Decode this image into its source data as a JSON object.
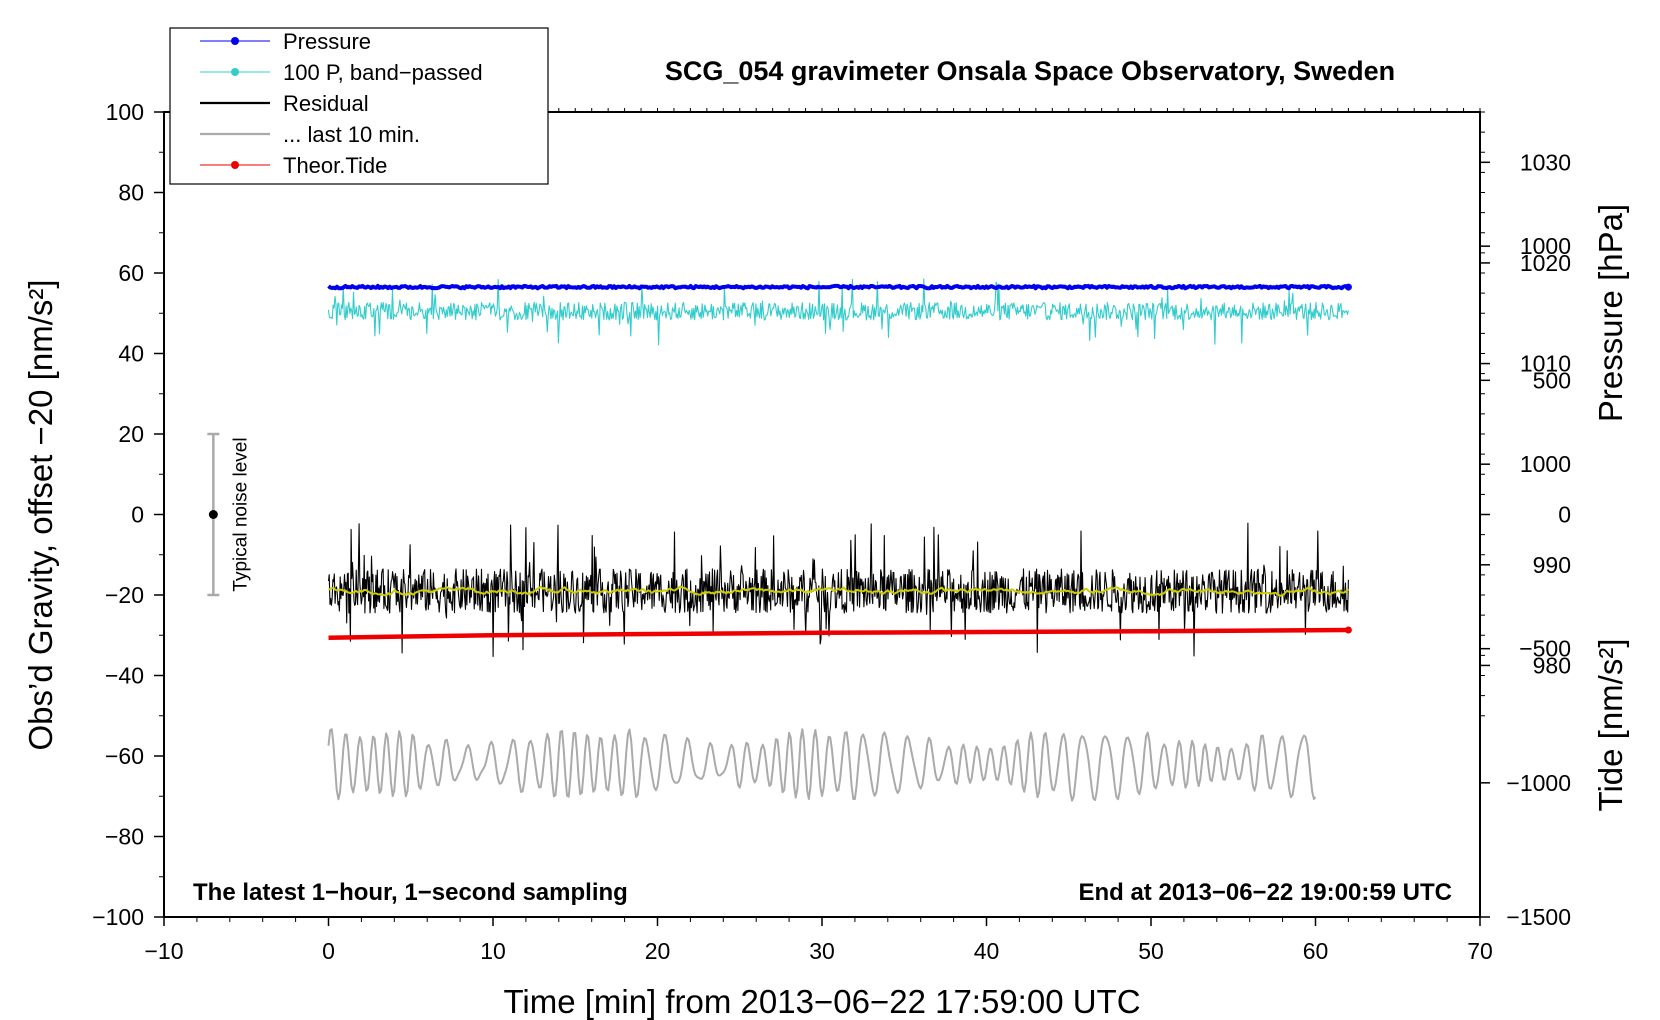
{
  "chart_data": {
    "type": "line",
    "title": "SCG_054 gravimeter Onsala Space Observatory, Sweden",
    "xlabel": "Time [min] from 2013−06−22 17:59:00 UTC",
    "ylabel_left": "Obs’d Gravity, offset −20 [nm/s²]",
    "ylabel_pressure": "Pressure [hPa]",
    "ylabel_tide": "Tide [nm/s²]",
    "xlim": [
      -10,
      70
    ],
    "ylim": [
      -100,
      100
    ],
    "pressure_range": [
      955,
      1035
    ],
    "tide_range": [
      -1500,
      1500
    ],
    "x_ticks": [
      {
        "value": -10,
        "label": "−10"
      },
      {
        "value": 0,
        "label": "0"
      },
      {
        "value": 10,
        "label": "10"
      },
      {
        "value": 20,
        "label": "20"
      },
      {
        "value": 30,
        "label": "30"
      },
      {
        "value": 40,
        "label": "40"
      },
      {
        "value": 50,
        "label": "50"
      },
      {
        "value": 60,
        "label": "60"
      },
      {
        "value": 70,
        "label": "70"
      }
    ],
    "y_ticks": [
      {
        "value": 100,
        "label": "100"
      },
      {
        "value": 80,
        "label": "80"
      },
      {
        "value": 60,
        "label": "60"
      },
      {
        "value": 40,
        "label": "40"
      },
      {
        "value": 20,
        "label": "20"
      },
      {
        "value": 0,
        "label": "0"
      },
      {
        "value": -20,
        "label": "−20"
      },
      {
        "value": -40,
        "label": "−40"
      },
      {
        "value": -60,
        "label": "−60"
      },
      {
        "value": -80,
        "label": "−80"
      },
      {
        "value": -100,
        "label": "−100"
      }
    ],
    "pressure_ticks": [
      {
        "value": 1030,
        "label": "1030"
      },
      {
        "value": 1020,
        "label": "1020"
      },
      {
        "value": 1010,
        "label": "1010"
      },
      {
        "value": 1000,
        "label": "1000"
      },
      {
        "value": 990,
        "label": "990"
      },
      {
        "value": 980,
        "label": "980"
      }
    ],
    "tide_ticks": [
      {
        "value": 1000,
        "label": "1000"
      },
      {
        "value": 500,
        "label": "500"
      },
      {
        "value": 0,
        "label": "0"
      },
      {
        "value": -500,
        "label": "−500"
      },
      {
        "value": -1000,
        "label": "−1000"
      },
      {
        "value": -1500,
        "label": "−1500"
      }
    ],
    "series": [
      {
        "name": "Pressure",
        "color": "#0000ee",
        "style": "line-dot",
        "x": [
          0,
          62
        ],
        "y": [
          56.5,
          56.5
        ],
        "noise": 0.3
      },
      {
        "name": "100 P, band−passed",
        "color": "#33cccc",
        "style": "line-dot",
        "x": [
          0,
          62
        ],
        "y": [
          50.5,
          50.5
        ],
        "noise": 2.2,
        "spike": 4.5
      },
      {
        "name": "Residual",
        "color": "#000000",
        "style": "line",
        "x": [
          0,
          62
        ],
        "y": [
          -19,
          -19
        ],
        "noise": 5.5,
        "spike": 9
      },
      {
        "name": "... last 10 min.",
        "color": "#aaaaaa",
        "style": "line",
        "x": [
          0,
          60
        ],
        "y": [
          -62,
          -62
        ],
        "noise": 8
      },
      {
        "name": "Theor.Tide",
        "color": "#ee0000",
        "style": "line-dot",
        "x": [
          0,
          10,
          20,
          30,
          40,
          50,
          62
        ],
        "y": [
          -30.6,
          -30.0,
          -29.7,
          -29.4,
          -29.2,
          -29.0,
          -28.7
        ]
      },
      {
        "name": "Smoothed residual",
        "color": "#cccc00",
        "style": "line",
        "x": [
          0,
          62
        ],
        "y": [
          -19,
          -19
        ],
        "noise": 0.7,
        "in_legend": false
      }
    ],
    "noise_bar": {
      "x": -7,
      "y": 0,
      "low": -20,
      "high": 20,
      "label": "Typical noise level"
    },
    "annotations": {
      "left": "The latest 1−hour, 1−second sampling",
      "right": "End at 2013−06−22 19:00:59 UTC"
    }
  }
}
